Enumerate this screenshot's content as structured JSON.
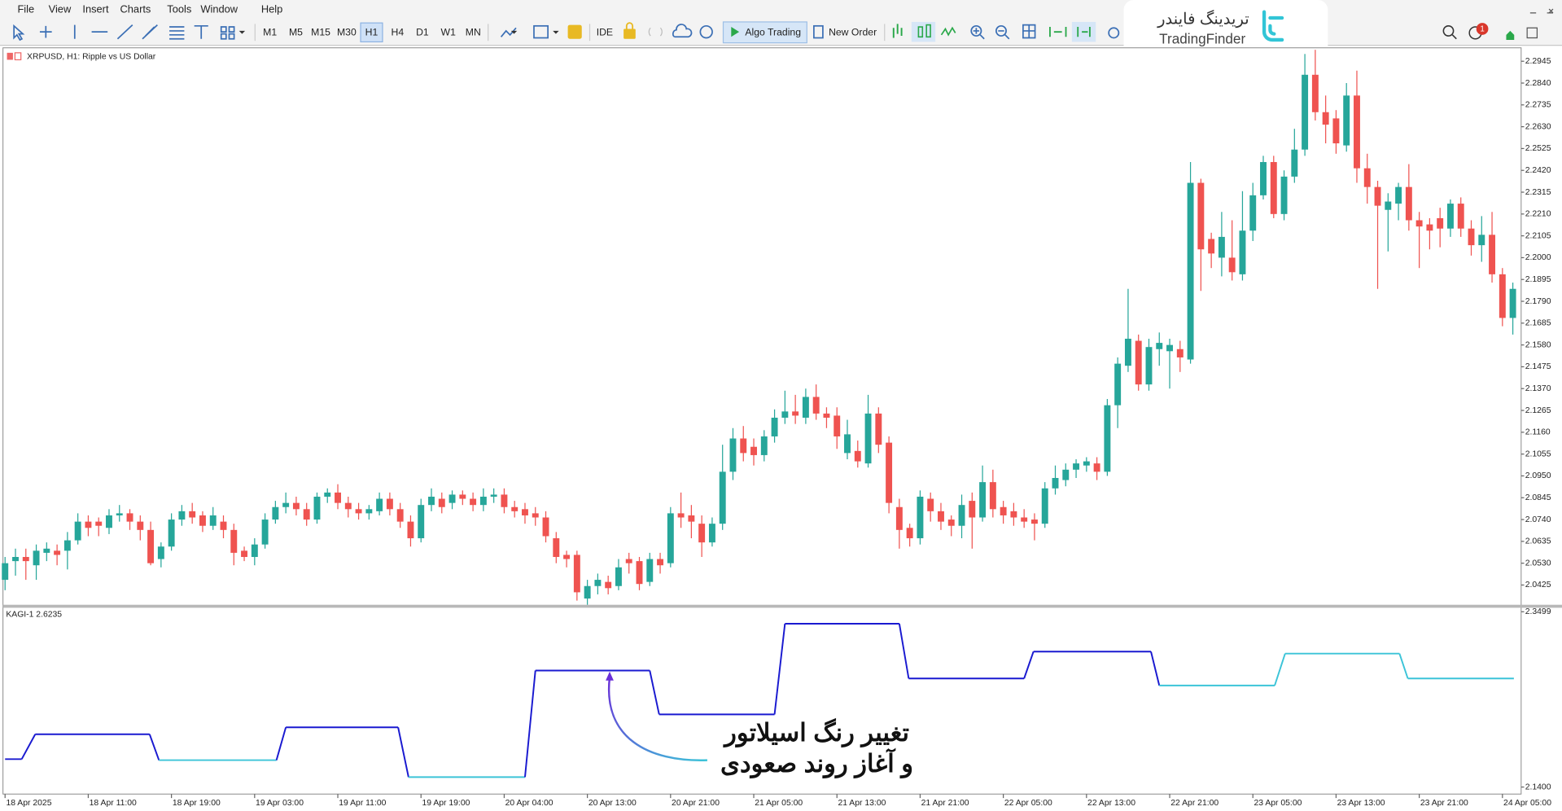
{
  "menu": [
    "File",
    "View",
    "Insert",
    "Charts",
    "Tools",
    "Window",
    "Help"
  ],
  "toolbar": {
    "timeframes": [
      "M1",
      "M5",
      "M15",
      "M30",
      "H1",
      "H4",
      "D1",
      "W1",
      "MN"
    ],
    "active_timeframe": 4,
    "ide": "IDE",
    "algo_trading": "Algo Trading",
    "new_order": "New Order",
    "notifications": "1"
  },
  "logo": {
    "persian": "تریدینگ فایندر",
    "latin": "TradingFinder"
  },
  "annotation": [
    "تغییر رنگ اسیلاتور",
    "و آغاز روند صعودی"
  ],
  "chart_data": [
    {
      "type": "candlestick",
      "title": "XRPUSD, H1:  Ripple vs US Dollar",
      "up_color": "#26a69a",
      "down_color": "#ef5350",
      "grid": false,
      "xlim": [
        -0.2,
        145.8
      ],
      "ylim": [
        2.033,
        2.3
      ],
      "xticks": [
        {
          "value": 0,
          "label": "18 Apr 2025"
        },
        {
          "value": 8,
          "label": "18 Apr 11:00"
        },
        {
          "value": 16,
          "label": "18 Apr 19:00"
        },
        {
          "value": 24,
          "label": "19 Apr 03:00"
        },
        {
          "value": 32,
          "label": "19 Apr 11:00"
        },
        {
          "value": 40,
          "label": "19 Apr 19:00"
        },
        {
          "value": 48,
          "label": "20 Apr 04:00"
        },
        {
          "value": 56,
          "label": "20 Apr 13:00"
        },
        {
          "value": 64,
          "label": "20 Apr 21:00"
        },
        {
          "value": 72,
          "label": "21 Apr 05:00"
        },
        {
          "value": 80,
          "label": "21 Apr 13:00"
        },
        {
          "value": 88,
          "label": "21 Apr 21:00"
        },
        {
          "value": 96,
          "label": "22 Apr 05:00"
        },
        {
          "value": 104,
          "label": "22 Apr 13:00"
        },
        {
          "value": 112,
          "label": "22 Apr 21:00"
        },
        {
          "value": 120,
          "label": "23 Apr 05:00"
        },
        {
          "value": 128,
          "label": "23 Apr 13:00"
        },
        {
          "value": 136,
          "label": "23 Apr 21:00"
        },
        {
          "value": 144,
          "label": "24 Apr 05:00"
        }
      ],
      "yticks": [
        2.2945,
        {
          "value": 2.284,
          "label": "2.2840"
        },
        2.2735,
        {
          "value": 2.263,
          "label": "2.2630"
        },
        2.2525,
        {
          "value": 2.242,
          "label": "2.2420"
        },
        2.2315,
        {
          "value": 2.221,
          "label": "2.2210"
        },
        2.2105,
        {
          "value": 2.2,
          "label": "2.2000"
        },
        2.1895,
        {
          "value": 2.179,
          "label": "2.1790"
        },
        2.1685,
        {
          "value": 2.158,
          "label": "2.1580"
        },
        2.1475,
        {
          "value": 2.137,
          "label": "2.1370"
        },
        2.1265,
        {
          "value": 2.116,
          "label": "2.1160"
        },
        2.1055,
        {
          "value": 2.095,
          "label": "2.0950"
        },
        2.0845,
        {
          "value": 2.074,
          "label": "2.0740"
        },
        2.0635,
        {
          "value": 2.053,
          "label": "2.0530"
        },
        2.0425
      ],
      "ohlc": [
        [
          2.045,
          2.056,
          2.04,
          2.053
        ],
        [
          2.054,
          2.06,
          2.047,
          2.056
        ],
        [
          2.056,
          2.06,
          2.045,
          2.054
        ],
        [
          2.052,
          2.062,
          2.045,
          2.059
        ],
        [
          2.058,
          2.063,
          2.054,
          2.06
        ],
        [
          2.059,
          2.062,
          2.052,
          2.057
        ],
        [
          2.059,
          2.068,
          2.05,
          2.064
        ],
        [
          2.064,
          2.077,
          2.062,
          2.073
        ],
        [
          2.073,
          2.076,
          2.066,
          2.07
        ],
        [
          2.073,
          2.075,
          2.066,
          2.071
        ],
        [
          2.07,
          2.079,
          2.067,
          2.076
        ],
        [
          2.076,
          2.081,
          2.073,
          2.077
        ],
        [
          2.077,
          2.079,
          2.069,
          2.073
        ],
        [
          2.073,
          2.076,
          2.064,
          2.069
        ],
        [
          2.069,
          2.073,
          2.052,
          2.053
        ],
        [
          2.055,
          2.063,
          2.051,
          2.061
        ],
        [
          2.061,
          2.077,
          2.059,
          2.074
        ],
        [
          2.074,
          2.081,
          2.071,
          2.078
        ],
        [
          2.078,
          2.082,
          2.072,
          2.075
        ],
        [
          2.076,
          2.078,
          2.068,
          2.071
        ],
        [
          2.071,
          2.08,
          2.069,
          2.076
        ],
        [
          2.073,
          2.076,
          2.065,
          2.069
        ],
        [
          2.069,
          2.072,
          2.052,
          2.058
        ],
        [
          2.059,
          2.061,
          2.054,
          2.056
        ],
        [
          2.056,
          2.065,
          2.052,
          2.062
        ],
        [
          2.062,
          2.077,
          2.06,
          2.074
        ],
        [
          2.074,
          2.083,
          2.072,
          2.08
        ],
        [
          2.08,
          2.087,
          2.077,
          2.082
        ],
        [
          2.082,
          2.085,
          2.076,
          2.079
        ],
        [
          2.079,
          2.082,
          2.071,
          2.074
        ],
        [
          2.074,
          2.087,
          2.072,
          2.085
        ],
        [
          2.085,
          2.089,
          2.082,
          2.087
        ],
        [
          2.087,
          2.091,
          2.079,
          2.082
        ],
        [
          2.082,
          2.085,
          2.075,
          2.079
        ],
        [
          2.079,
          2.082,
          2.074,
          2.077
        ],
        [
          2.077,
          2.081,
          2.074,
          2.079
        ],
        [
          2.078,
          2.087,
          2.076,
          2.084
        ],
        [
          2.084,
          2.087,
          2.076,
          2.079
        ],
        [
          2.079,
          2.082,
          2.07,
          2.073
        ],
        [
          2.073,
          2.076,
          2.061,
          2.065
        ],
        [
          2.065,
          2.084,
          2.063,
          2.081
        ],
        [
          2.081,
          2.089,
          2.078,
          2.085
        ],
        [
          2.084,
          2.087,
          2.077,
          2.08
        ],
        [
          2.082,
          2.088,
          2.079,
          2.086
        ],
        [
          2.086,
          2.088,
          2.081,
          2.084
        ],
        [
          2.084,
          2.087,
          2.078,
          2.081
        ],
        [
          2.081,
          2.089,
          2.078,
          2.085
        ],
        [
          2.085,
          2.089,
          2.082,
          2.086
        ],
        [
          2.086,
          2.089,
          2.077,
          2.08
        ],
        [
          2.08,
          2.083,
          2.075,
          2.078
        ],
        [
          2.079,
          2.082,
          2.072,
          2.076
        ],
        [
          2.077,
          2.08,
          2.071,
          2.075
        ],
        [
          2.075,
          2.078,
          2.063,
          2.066
        ],
        [
          2.065,
          2.068,
          2.053,
          2.056
        ],
        [
          2.057,
          2.059,
          2.051,
          2.055
        ],
        [
          2.057,
          2.059,
          2.035,
          2.039
        ],
        [
          2.036,
          2.045,
          2.033,
          2.042
        ],
        [
          2.042,
          2.048,
          2.038,
          2.045
        ],
        [
          2.044,
          2.047,
          2.038,
          2.041
        ],
        [
          2.042,
          2.055,
          2.04,
          2.051
        ],
        [
          2.055,
          2.058,
          2.048,
          2.053
        ],
        [
          2.054,
          2.056,
          2.04,
          2.043
        ],
        [
          2.044,
          2.058,
          2.042,
          2.055
        ],
        [
          2.055,
          2.058,
          2.048,
          2.052
        ],
        [
          2.053,
          2.08,
          2.051,
          2.077
        ],
        [
          2.077,
          2.087,
          2.07,
          2.075
        ],
        [
          2.076,
          2.081,
          2.065,
          2.073
        ],
        [
          2.072,
          2.076,
          2.056,
          2.063
        ],
        [
          2.063,
          2.075,
          2.061,
          2.072
        ],
        [
          2.072,
          2.11,
          2.069,
          2.097
        ],
        [
          2.097,
          2.118,
          2.093,
          2.113
        ],
        [
          2.113,
          2.119,
          2.102,
          2.106
        ],
        [
          2.109,
          2.113,
          2.1,
          2.105
        ],
        [
          2.105,
          2.117,
          2.102,
          2.114
        ],
        [
          2.114,
          2.127,
          2.111,
          2.123
        ],
        [
          2.123,
          2.136,
          2.12,
          2.126
        ],
        [
          2.126,
          2.134,
          2.12,
          2.124
        ],
        [
          2.123,
          2.137,
          2.12,
          2.133
        ],
        [
          2.133,
          2.139,
          2.122,
          2.125
        ],
        [
          2.125,
          2.128,
          2.118,
          2.123
        ],
        [
          2.124,
          2.128,
          2.108,
          2.114
        ],
        [
          2.106,
          2.122,
          2.103,
          2.115
        ],
        [
          2.107,
          2.112,
          2.099,
          2.102
        ],
        [
          2.101,
          2.134,
          2.099,
          2.125
        ],
        [
          2.125,
          2.128,
          2.106,
          2.11
        ],
        [
          2.111,
          2.114,
          2.077,
          2.082
        ],
        [
          2.08,
          2.084,
          2.06,
          2.069
        ],
        [
          2.07,
          2.072,
          2.061,
          2.065
        ],
        [
          2.065,
          2.088,
          2.062,
          2.085
        ],
        [
          2.084,
          2.087,
          2.073,
          2.078
        ],
        [
          2.078,
          2.082,
          2.069,
          2.073
        ],
        [
          2.074,
          2.076,
          2.066,
          2.071
        ],
        [
          2.071,
          2.086,
          2.065,
          2.081
        ],
        [
          2.083,
          2.087,
          2.06,
          2.075
        ],
        [
          2.075,
          2.1,
          2.073,
          2.092
        ],
        [
          2.092,
          2.098,
          2.075,
          2.079
        ],
        [
          2.08,
          2.083,
          2.072,
          2.076
        ],
        [
          2.078,
          2.082,
          2.071,
          2.075
        ],
        [
          2.075,
          2.079,
          2.07,
          2.073
        ],
        [
          2.074,
          2.077,
          2.064,
          2.072
        ],
        [
          2.072,
          2.092,
          2.07,
          2.089
        ],
        [
          2.089,
          2.1,
          2.086,
          2.094
        ],
        [
          2.093,
          2.101,
          2.09,
          2.098
        ],
        [
          2.098,
          2.103,
          2.094,
          2.101
        ],
        [
          2.1,
          2.104,
          2.097,
          2.102
        ],
        [
          2.101,
          2.104,
          2.093,
          2.097
        ],
        [
          2.097,
          2.132,
          2.095,
          2.129
        ],
        [
          2.129,
          2.152,
          2.118,
          2.149
        ],
        [
          2.148,
          2.185,
          2.145,
          2.161
        ],
        [
          2.16,
          2.163,
          2.136,
          2.139
        ],
        [
          2.139,
          2.161,
          2.136,
          2.157
        ],
        [
          2.156,
          2.164,
          2.148,
          2.159
        ],
        [
          2.155,
          2.161,
          2.137,
          2.158
        ],
        [
          2.156,
          2.16,
          2.145,
          2.152
        ],
        [
          2.151,
          2.246,
          2.149,
          2.236
        ],
        [
          2.236,
          2.238,
          2.184,
          2.204
        ],
        [
          2.209,
          2.212,
          2.195,
          2.202
        ],
        [
          2.2,
          2.222,
          2.191,
          2.21
        ],
        [
          2.2,
          2.218,
          2.189,
          2.193
        ],
        [
          2.192,
          2.232,
          2.189,
          2.213
        ],
        [
          2.213,
          2.236,
          2.208,
          2.23
        ],
        [
          2.23,
          2.249,
          2.228,
          2.246
        ],
        [
          2.246,
          2.249,
          2.219,
          2.221
        ],
        [
          2.221,
          2.242,
          2.218,
          2.239
        ],
        [
          2.239,
          2.262,
          2.236,
          2.252
        ],
        [
          2.252,
          2.298,
          2.249,
          2.288
        ],
        [
          2.288,
          2.3,
          2.266,
          2.27
        ],
        [
          2.27,
          2.278,
          2.255,
          2.264
        ],
        [
          2.267,
          2.271,
          2.25,
          2.255
        ],
        [
          2.254,
          2.284,
          2.251,
          2.278
        ],
        [
          2.278,
          2.29,
          2.236,
          2.243
        ],
        [
          2.243,
          2.25,
          2.226,
          2.234
        ],
        [
          2.234,
          2.237,
          2.185,
          2.225
        ],
        [
          2.223,
          2.231,
          2.203,
          2.227
        ],
        [
          2.226,
          2.236,
          2.218,
          2.234
        ],
        [
          2.234,
          2.245,
          2.213,
          2.218
        ],
        [
          2.218,
          2.222,
          2.195,
          2.215
        ],
        [
          2.216,
          2.219,
          2.204,
          2.213
        ],
        [
          2.219,
          2.224,
          2.205,
          2.214
        ],
        [
          2.214,
          2.228,
          2.21,
          2.226
        ],
        [
          2.226,
          2.229,
          2.21,
          2.214
        ],
        [
          2.214,
          2.218,
          2.201,
          2.206
        ],
        [
          2.206,
          2.22,
          2.198,
          2.211
        ],
        [
          2.211,
          2.222,
          2.188,
          2.192
        ],
        [
          2.192,
          2.195,
          2.167,
          2.171
        ],
        [
          2.171,
          2.188,
          2.163,
          2.185
        ]
      ]
    },
    {
      "type": "kagi",
      "title": "KAGI-1 2.6235",
      "xlim": [
        -0.2,
        145.8
      ],
      "ylim": [
        2.1316,
        2.3535
      ],
      "yticks": [
        2.3499,
        {
          "value": 2.14,
          "label": "2.1400"
        }
      ],
      "x": [
        0,
        1.6,
        2.9,
        13.9,
        14.8,
        26.1,
        27.0,
        37.8,
        38.8,
        50.0,
        51.0,
        62.0,
        62.9,
        74.0,
        75.0,
        86.0,
        86.9,
        98.0,
        98.9,
        110.2,
        111.0,
        122.1,
        123.1,
        134.1,
        134.9,
        145.1
      ],
      "values": [
        2.1734,
        2.1734,
        2.2032,
        2.2032,
        2.1722,
        2.1722,
        2.2115,
        2.2115,
        2.1519,
        2.1519,
        2.2795,
        2.2795,
        2.227,
        2.227,
        2.3356,
        2.3356,
        2.27,
        2.27,
        2.3022,
        2.3022,
        2.2616,
        2.2616,
        2.2998,
        2.2998,
        2.27,
        2.27
      ],
      "segment_colors": [
        "#1a1ad0",
        "#1a1ad0",
        "#1a1ad0",
        "#1a1ad0",
        "#3cc4d8",
        "#1a1ad0",
        "#1a1ad0",
        "#1a1ad0",
        "#3cc4d8",
        "#1a1ad0",
        "#1a1ad0",
        "#1a1ad0",
        "#1a1ad0",
        "#1a1ad0",
        "#1a1ad0",
        "#1a1ad0",
        "#1a1ad0",
        "#1a1ad0",
        "#1a1ad0",
        "#1a1ad0",
        "#3cc4d8",
        "#3cc4d8",
        "#3cc4d8",
        "#3cc4d8",
        "#3cc4d8"
      ]
    }
  ]
}
